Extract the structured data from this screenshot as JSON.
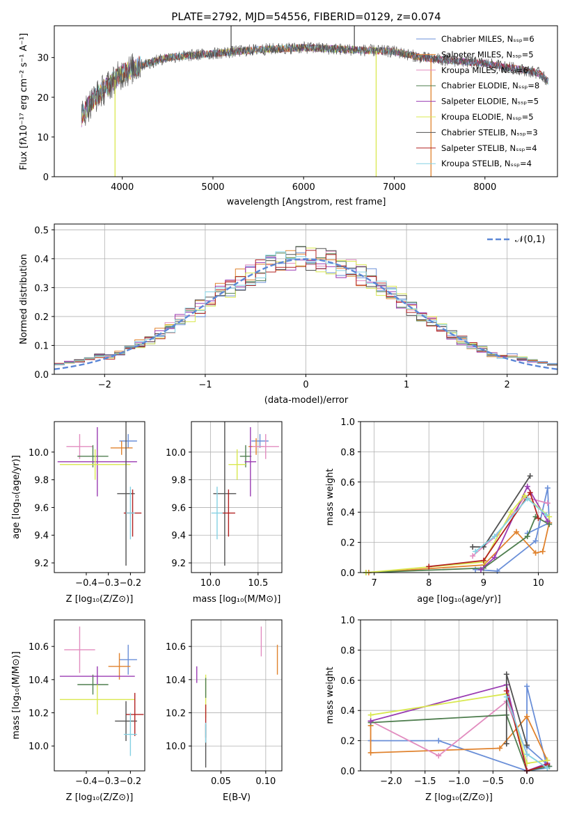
{
  "colors": {
    "palette": [
      "#6a8fd8",
      "#e0822d",
      "#e28cbf",
      "#4f7e4f",
      "#9a3bb2",
      "#d9e84f",
      "#505050",
      "#b22222",
      "#84d1e3"
    ],
    "gaussian": "#5b87d6",
    "grid": "#b0b0b0"
  },
  "chart_data": [
    {
      "id": "spectrum",
      "type": "line",
      "title": "PLATE=2792, MJD=54556, FIBERID=0129, z=0.074",
      "xlabel": "wavelength [Angstrom, rest frame]",
      "ylabel": "Flux [fλ10⁻¹⁷ erg cm⁻² s⁻¹ A⁻¹]",
      "xlim": [
        3250,
        8800
      ],
      "ylim": [
        0,
        38
      ],
      "xticks": [
        "4000",
        "5000",
        "6000",
        "7000",
        "8000"
      ],
      "yticks": [
        "0",
        "10",
        "20",
        "30"
      ],
      "grid": false,
      "legend_position": "top-right",
      "legend": [
        "Chabrier MILES, Nₛₛₚ=6",
        "Salpeter MILES, Nₛₛₚ=5",
        "Kroupa MILES, Nₛₛₚ=6",
        "Chabrier ELODIE, Nₛₛₚ=8",
        "Salpeter ELODIE, Nₛₛₚ=5",
        "Kroupa ELODIE, Nₛₛₚ=5",
        "Chabrier STELIB, Nₛₛₚ=3",
        "Salpeter STELIB, Nₛₛₚ=4",
        "Kroupa STELIB, Nₛₛₚ=4"
      ],
      "continuum": [
        [
          3550,
          15
        ],
        [
          3600,
          17
        ],
        [
          3700,
          20
        ],
        [
          3800,
          22
        ],
        [
          3900,
          24
        ],
        [
          4000,
          26
        ],
        [
          4200,
          28
        ],
        [
          4500,
          30
        ],
        [
          5000,
          31
        ],
        [
          5500,
          32
        ],
        [
          6000,
          32.5
        ],
        [
          6500,
          32
        ],
        [
          7000,
          31.5
        ],
        [
          7300,
          30
        ],
        [
          7500,
          29.5
        ],
        [
          8000,
          28.5
        ],
        [
          8400,
          27
        ],
        [
          8600,
          26
        ],
        [
          8700,
          24
        ]
      ],
      "features": [
        {
          "x": 3920,
          "y": 0,
          "series": 5
        },
        {
          "x": 6800,
          "y": 0,
          "series": 5
        },
        {
          "x": 7405,
          "y": 0,
          "series": 1
        },
        {
          "x": 5200,
          "y": 38,
          "series": 6
        },
        {
          "x": 6560,
          "y": 38,
          "series": 6
        }
      ]
    },
    {
      "id": "residuals",
      "type": "histogram",
      "xlabel": "(data-model)/error",
      "ylabel": "Normed distribution",
      "xlim": [
        -2.5,
        2.5
      ],
      "ylim": [
        0,
        0.52
      ],
      "xticks": [
        "−2",
        "−1",
        "0",
        "1",
        "2"
      ],
      "yticks": [
        "0.0",
        "0.1",
        "0.2",
        "0.3",
        "0.4",
        "0.5"
      ],
      "grid": true,
      "legend": [
        "𝒩(0,1)"
      ],
      "legend_position": "top-right",
      "bin_width": 0.1,
      "series_count": 9
    },
    {
      "id": "age-vs-z",
      "type": "errorbar",
      "xlabel": "Z [log₁₀(Z/Z⊙)]",
      "ylabel": "age  [log₁₀(age/yr)]",
      "xlim": [
        -0.545,
        -0.135
      ],
      "ylim": [
        9.13,
        10.22
      ],
      "xticks": [
        "−0.4",
        "−0.3",
        "−0.2"
      ],
      "xtick_values": [
        -0.4,
        -0.3,
        -0.2
      ],
      "yticks": [
        "9.2",
        "9.4",
        "9.6",
        "9.8",
        "10.0"
      ],
      "ytick_values": [
        9.2,
        9.4,
        9.6,
        9.8,
        10.0
      ],
      "grid": false,
      "points": [
        {
          "x": -0.21,
          "y": 10.08,
          "xe": 0.04,
          "ye": 0.05,
          "c": 0
        },
        {
          "x": -0.24,
          "y": 10.03,
          "xe": 0.05,
          "ye": 0.05,
          "c": 1
        },
        {
          "x": -0.43,
          "y": 10.04,
          "xe": 0.06,
          "ye": 0.09,
          "c": 2
        },
        {
          "x": -0.37,
          "y": 9.97,
          "xe": 0.07,
          "ye": 0.08,
          "c": 3
        },
        {
          "x": -0.35,
          "y": 9.93,
          "xe": 0.18,
          "ye": 0.25,
          "c": 4
        },
        {
          "x": -0.36,
          "y": 9.91,
          "xe": 0.16,
          "ye": 0.11,
          "c": 5
        },
        {
          "x": -0.22,
          "y": 9.7,
          "xe": 0.04,
          "ye": 0.52,
          "c": 6
        },
        {
          "x": -0.19,
          "y": 9.56,
          "xe": 0.04,
          "ye": 0.17,
          "c": 7
        },
        {
          "x": -0.2,
          "y": 9.56,
          "xe": 0.02,
          "ye": 0.19,
          "c": 8
        }
      ]
    },
    {
      "id": "age-vs-mass",
      "type": "errorbar",
      "xlabel": "mass [log₁₀(M/M⊙)]",
      "xlim": [
        9.8,
        10.75
      ],
      "ylim": [
        9.13,
        10.22
      ],
      "xticks": [
        "10.0",
        "10.5"
      ],
      "xtick_values": [
        10.0,
        10.5
      ],
      "yticks": [
        "9.2",
        "9.4",
        "9.6",
        "9.8",
        "10.0"
      ],
      "ytick_values": [
        9.2,
        9.4,
        9.6,
        9.8,
        10.0
      ],
      "grid": true,
      "points": [
        {
          "x": 10.52,
          "y": 10.08,
          "xe": 0.09,
          "ye": 0.05,
          "c": 0
        },
        {
          "x": 10.48,
          "y": 10.04,
          "xe": 0.08,
          "ye": 0.06,
          "c": 1
        },
        {
          "x": 10.58,
          "y": 10.04,
          "xe": 0.14,
          "ye": 0.09,
          "c": 2
        },
        {
          "x": 10.37,
          "y": 9.97,
          "xe": 0.06,
          "ye": 0.08,
          "c": 3
        },
        {
          "x": 10.42,
          "y": 9.93,
          "xe": 0.06,
          "ye": 0.25,
          "c": 4
        },
        {
          "x": 10.28,
          "y": 9.91,
          "xe": 0.09,
          "ye": 0.11,
          "c": 5
        },
        {
          "x": 10.15,
          "y": 9.7,
          "xe": 0.12,
          "ye": 0.52,
          "c": 6
        },
        {
          "x": 10.19,
          "y": 9.56,
          "xe": 0.07,
          "ye": 0.17,
          "c": 7
        },
        {
          "x": 10.07,
          "y": 9.56,
          "xe": 0.06,
          "ye": 0.19,
          "c": 8
        }
      ]
    },
    {
      "id": "weight-vs-age",
      "type": "line",
      "xlabel": "age  [log₁₀(age/yr)]",
      "ylabel": "mass weight",
      "xlim": [
        6.75,
        10.35
      ],
      "ylim": [
        0,
        1.0
      ],
      "xticks": [
        "7",
        "8",
        "9",
        "10"
      ],
      "xtick_values": [
        7,
        8,
        9,
        10
      ],
      "yticks": [
        "0.0",
        "0.2",
        "0.4",
        "0.6",
        "0.8",
        "1.0"
      ],
      "ytick_values": [
        0,
        0.2,
        0.4,
        0.6,
        0.8,
        1.0
      ],
      "grid": true,
      "series": [
        {
          "c": 0,
          "x": [
            8.85,
            9.25,
            9.95,
            10.17,
            10.2,
            9.8
          ],
          "y": [
            0.02,
            0.01,
            0.21,
            0.56,
            0.33,
            0.26
          ]
        },
        {
          "c": 1,
          "x": [
            6.9,
            9.0,
            9.6,
            9.95,
            10.08,
            10.2
          ],
          "y": [
            0.0,
            0.05,
            0.27,
            0.13,
            0.14,
            0.33
          ]
        },
        {
          "c": 2,
          "x": [
            8.8,
            9.25,
            9.75,
            10.17
          ],
          "y": [
            0.11,
            0.25,
            0.5,
            0.46
          ]
        },
        {
          "c": 3,
          "x": [
            6.85,
            9.0,
            9.8,
            9.95,
            10.2
          ],
          "y": [
            0.0,
            0.03,
            0.24,
            0.37,
            0.32
          ]
        },
        {
          "c": 4,
          "x": [
            8.95,
            9.2,
            9.8,
            10.17
          ],
          "y": [
            0.02,
            0.1,
            0.57,
            0.34
          ]
        },
        {
          "c": 5,
          "x": [
            6.85,
            9.0,
            9.5,
            9.75,
            10.2
          ],
          "y": [
            0.0,
            0.07,
            0.4,
            0.51,
            0.37
          ]
        },
        {
          "c": 6,
          "x": [
            8.8,
            9.0,
            9.85
          ],
          "y": [
            0.17,
            0.17,
            0.64
          ]
        },
        {
          "c": 7,
          "x": [
            8.0,
            9.0,
            9.85,
            10.0
          ],
          "y": [
            0.04,
            0.08,
            0.53,
            0.36
          ]
        },
        {
          "c": 8,
          "x": [
            8.85,
            9.2,
            9.8,
            10.15
          ],
          "y": [
            0.14,
            0.24,
            0.49,
            0.38
          ]
        }
      ]
    },
    {
      "id": "mass-vs-z",
      "type": "errorbar",
      "xlabel": "Z [log₁₀(Z/Z⊙)]",
      "ylabel": "mass [log₁₀(M/M⊙)]",
      "xlim": [
        -0.545,
        -0.135
      ],
      "ylim": [
        9.85,
        10.76
      ],
      "xticks": [
        "−0.4",
        "−0.3",
        "−0.2"
      ],
      "xtick_values": [
        -0.4,
        -0.3,
        -0.2
      ],
      "yticks": [
        "10.0",
        "10.2",
        "10.4",
        "10.6"
      ],
      "ytick_values": [
        10.0,
        10.2,
        10.4,
        10.6
      ],
      "grid": false,
      "points": [
        {
          "x": -0.21,
          "y": 10.52,
          "xe": 0.04,
          "ye": 0.09,
          "c": 0
        },
        {
          "x": -0.25,
          "y": 10.48,
          "xe": 0.05,
          "ye": 0.08,
          "c": 1
        },
        {
          "x": -0.43,
          "y": 10.58,
          "xe": 0.07,
          "ye": 0.14,
          "c": 2
        },
        {
          "x": -0.37,
          "y": 10.37,
          "xe": 0.07,
          "ye": 0.06,
          "c": 3
        },
        {
          "x": -0.35,
          "y": 10.42,
          "xe": 0.17,
          "ye": 0.06,
          "c": 4
        },
        {
          "x": -0.35,
          "y": 10.28,
          "xe": 0.17,
          "ye": 0.09,
          "c": 5
        },
        {
          "x": -0.22,
          "y": 10.15,
          "xe": 0.05,
          "ye": 0.12,
          "c": 6
        },
        {
          "x": -0.18,
          "y": 10.19,
          "xe": 0.04,
          "ye": 0.13,
          "c": 7
        },
        {
          "x": -0.2,
          "y": 10.07,
          "xe": 0.03,
          "ye": 0.13,
          "c": 8
        }
      ]
    },
    {
      "id": "mass-vs-ebv",
      "type": "errorbar",
      "xlabel": "E(B-V)",
      "xlim": [
        0.017,
        0.118
      ],
      "ylim": [
        9.85,
        10.76
      ],
      "xticks": [
        "0.05",
        "0.10"
      ],
      "xtick_values": [
        0.05,
        0.1
      ],
      "yticks": [
        "10.0",
        "10.2",
        "10.4",
        "10.6"
      ],
      "ytick_values": [
        10.0,
        10.2,
        10.4,
        10.6
      ],
      "grid": true,
      "points": [
        {
          "x": 0.113,
          "y": 10.52,
          "xe": 0.0,
          "ye": 0.09,
          "c": 1
        },
        {
          "x": 0.095,
          "y": 10.63,
          "xe": 0.0,
          "ye": 0.09,
          "c": 2
        },
        {
          "x": 0.023,
          "y": 10.43,
          "xe": 0.0,
          "ye": 0.05,
          "c": 4
        },
        {
          "x": 0.033,
          "y": 10.3,
          "xe": 0.0,
          "ye": 0.13,
          "c": 5
        },
        {
          "x": 0.033,
          "y": 10.35,
          "xe": 0.0,
          "ye": 0.06,
          "c": 3
        },
        {
          "x": 0.033,
          "y": 10.15,
          "xe": 0.0,
          "ye": 0.1,
          "c": 7
        },
        {
          "x": 0.033,
          "y": 10.0,
          "xe": 0.0,
          "ye": 0.13,
          "c": 6
        },
        {
          "x": 0.033,
          "y": 10.08,
          "xe": 0.0,
          "ye": 0.06,
          "c": 8
        }
      ]
    },
    {
      "id": "weight-vs-z",
      "type": "line",
      "xlabel": "Z [log₁₀(Z/Z⊙)]",
      "ylabel": "mass weight",
      "xlim": [
        -2.45,
        0.45
      ],
      "ylim": [
        0,
        1.0
      ],
      "xticks": [
        "−2.0",
        "−1.5",
        "−1.0",
        "−0.5",
        "0.0"
      ],
      "xtick_values": [
        -2.0,
        -1.5,
        -1.0,
        -0.5,
        0.0
      ],
      "yticks": [
        "0.0",
        "0.2",
        "0.4",
        "0.6",
        "0.8",
        "1.0"
      ],
      "ytick_values": [
        0,
        0.2,
        0.4,
        0.6,
        0.8,
        1.0
      ],
      "grid": true,
      "series": [
        {
          "c": 0,
          "x": [
            -2.3,
            -1.3,
            0.0,
            0.3,
            0.0,
            0.0,
            0.33
          ],
          "y": [
            0.2,
            0.2,
            0.0,
            0.02,
            0.56,
            0.16,
            0.03
          ]
        },
        {
          "c": 1,
          "x": [
            -2.3,
            -2.3,
            -0.4,
            0.0,
            0.3
          ],
          "y": [
            0.3,
            0.12,
            0.15,
            0.36,
            0.07
          ]
        },
        {
          "c": 2,
          "x": [
            -2.3,
            -1.3,
            -0.3,
            0.0
          ],
          "y": [
            0.33,
            0.1,
            0.46,
            0.11
          ]
        },
        {
          "c": 3,
          "x": [
            -2.3,
            -0.3,
            0.0,
            0.33
          ],
          "y": [
            0.32,
            0.37,
            0.0,
            0.03
          ]
        },
        {
          "c": 4,
          "x": [
            -2.3,
            -0.3,
            0.0,
            0.3
          ],
          "y": [
            0.33,
            0.57,
            0.0,
            0.05
          ]
        },
        {
          "c": 5,
          "x": [
            -2.3,
            -0.3,
            0.0,
            0.3
          ],
          "y": [
            0.37,
            0.51,
            0.05,
            0.07
          ]
        },
        {
          "c": 6,
          "x": [
            -0.3,
            -0.3,
            0.0
          ],
          "y": [
            0.18,
            0.64,
            0.17
          ]
        },
        {
          "c": 7,
          "x": [
            -0.3,
            0.0,
            0.3
          ],
          "y": [
            0.53,
            0.0,
            0.04
          ]
        },
        {
          "c": 8,
          "x": [
            -0.3,
            0.0,
            0.3
          ],
          "y": [
            0.49,
            0.11,
            0.02
          ]
        }
      ]
    }
  ]
}
